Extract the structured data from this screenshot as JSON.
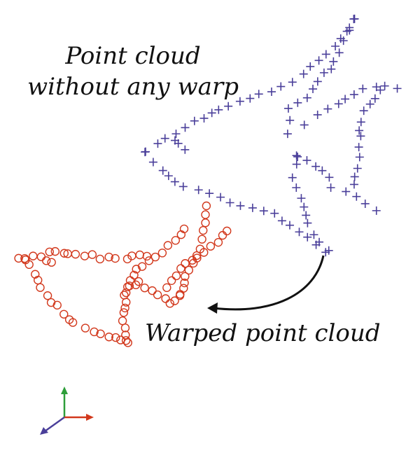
{
  "labels": {
    "original_line1": "Point cloud",
    "original_line2": "without any warp",
    "warped": "Warped point cloud"
  },
  "colors": {
    "original": "#4a3f9a",
    "warped": "#d2381c",
    "arrow": "#111111",
    "axis_x": "#d2381c",
    "axis_y": "#2e9e3a",
    "axis_z": "#4a3f9a"
  },
  "icons": {
    "original_marker": "plus-marker",
    "warped_marker": "circle-marker"
  }
}
